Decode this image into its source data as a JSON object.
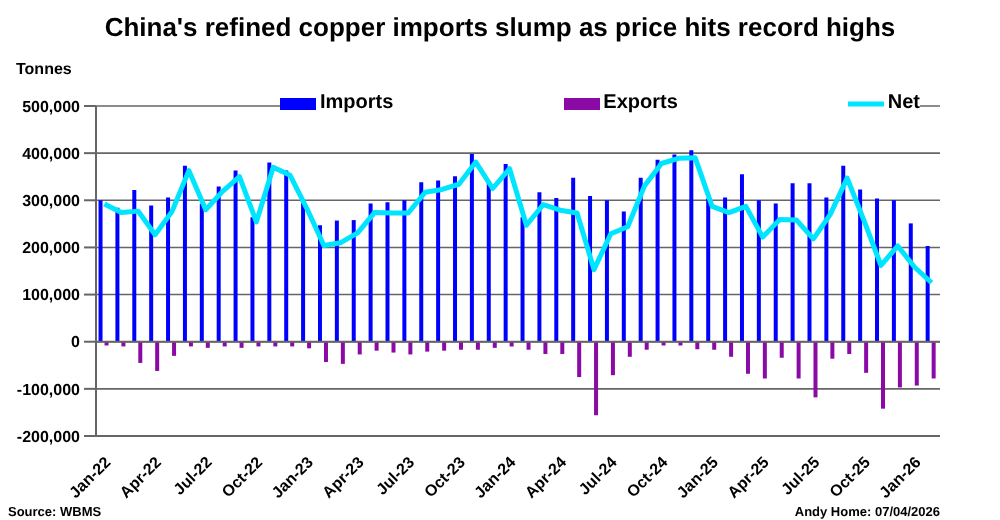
{
  "chart_data": {
    "type": "bar",
    "title": "China's refined copper imports slump as price hits record highs",
    "ylabel": "Tonnes",
    "categories": [
      "Jan-22",
      null,
      null,
      "Apr-22",
      null,
      null,
      "Jul-22",
      null,
      null,
      "Oct-22",
      null,
      null,
      "Jan-23",
      null,
      null,
      "Apr-23",
      null,
      null,
      "Jul-23",
      null,
      null,
      "Oct-23",
      null,
      null,
      "Jan-24",
      null,
      null,
      "Apr-24",
      null,
      null,
      "Jul-24",
      null,
      null,
      "Oct-24",
      null,
      null,
      "Jan-25",
      null,
      null,
      "Apr-25",
      null,
      null,
      "Jul-25",
      null,
      null,
      "Oct-25",
      null,
      null,
      "Jan-26",
      null
    ],
    "series": [
      {
        "name": "Imports",
        "color": "#0000ff",
        "values": [
          300000,
          284000,
          322000,
          289000,
          306000,
          373000,
          293000,
          329000,
          363000,
          264000,
          380000,
          363000,
          296000,
          247000,
          257000,
          258000,
          293000,
          296000,
          300000,
          338000,
          342000,
          351000,
          398000,
          338000,
          377000,
          264000,
          317000,
          305000,
          348000,
          309000,
          300000,
          276000,
          348000,
          386000,
          397000,
          406000,
          304000,
          306000,
          355000,
          300000,
          293000,
          336000,
          336000,
          306000,
          373000,
          323000,
          304000,
          300000,
          251000,
          203000
        ]
      },
      {
        "name": "Exports",
        "color": "#8b0aa5",
        "values": [
          -8000,
          -10000,
          -45000,
          -62000,
          -30000,
          -10000,
          -13000,
          -10000,
          -13000,
          -10000,
          -10000,
          -10000,
          -14000,
          -43000,
          -47000,
          -27000,
          -19000,
          -23000,
          -27000,
          -21000,
          -19000,
          -17000,
          -17000,
          -13000,
          -10000,
          -17000,
          -26000,
          -26000,
          -75000,
          -156000,
          -71000,
          -32000,
          -17000,
          -8000,
          -8000,
          -16000,
          -17000,
          -32000,
          -68000,
          -78000,
          -34000,
          -78000,
          -118000,
          -36000,
          -26000,
          -66000,
          -142000,
          -97000,
          -93000,
          -78000
        ]
      },
      {
        "name": "Net",
        "type": "line",
        "color": "#00e5ff",
        "values": [
          292000,
          274000,
          277000,
          227000,
          276000,
          363000,
          280000,
          319000,
          350000,
          254000,
          370000,
          353000,
          282000,
          204000,
          210000,
          231000,
          274000,
          273000,
          273000,
          317000,
          323000,
          334000,
          381000,
          325000,
          367000,
          247000,
          291000,
          279000,
          273000,
          153000,
          229000,
          244000,
          331000,
          378000,
          389000,
          390000,
          287000,
          274000,
          287000,
          222000,
          259000,
          258000,
          218000,
          270000,
          347000,
          257000,
          162000,
          203000,
          158000,
          125000
        ]
      }
    ],
    "ylim": [
      -200000,
      500000
    ],
    "yticks": [
      {
        "value": -200000,
        "label": "-200,000"
      },
      {
        "value": -100000,
        "label": "-100,000"
      },
      0,
      {
        "value": 100000,
        "label": "100,000"
      },
      {
        "value": 200000,
        "label": "200,000"
      },
      {
        "value": 300000,
        "label": "300,000"
      },
      {
        "value": 400000,
        "label": "400,000"
      },
      {
        "value": 500000,
        "label": "500,000"
      }
    ],
    "grid": "y",
    "legend": "top",
    "marker": "none",
    "line_style": "solid",
    "annotations": [
      "Source: WBMS",
      "Andy Home: 07/04/2026"
    ]
  }
}
